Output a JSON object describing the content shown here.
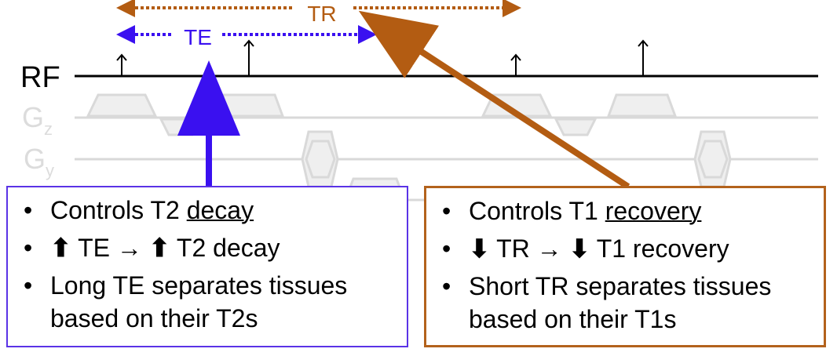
{
  "diagram": {
    "rf_label": "RF",
    "gz_label": "G",
    "gz_sub": "z",
    "gy_label": "G",
    "gy_sub": "y",
    "tr_label": "TR",
    "te_label": "TE",
    "colors": {
      "te": "#3a10f0",
      "tr": "#b35c12",
      "gradient": "#d9d9d9"
    }
  },
  "te_box": {
    "items": [
      {
        "prefix": "Controls T2 ",
        "underlined": "decay"
      },
      {
        "arrow1": "⬆",
        "mid": " TE → ",
        "arrow2": "⬆",
        "suffix": " T2 decay"
      },
      {
        "text": "Long TE separates tissues based on their T2s"
      }
    ]
  },
  "tr_box": {
    "items": [
      {
        "prefix": "Controls T1 ",
        "underlined": "recovery"
      },
      {
        "arrow1": "⬇",
        "mid": " TR → ",
        "arrow2": "⬇",
        "suffix": " T1 recovery"
      },
      {
        "text": "Short TR separates tissues based on their T1s"
      }
    ]
  }
}
